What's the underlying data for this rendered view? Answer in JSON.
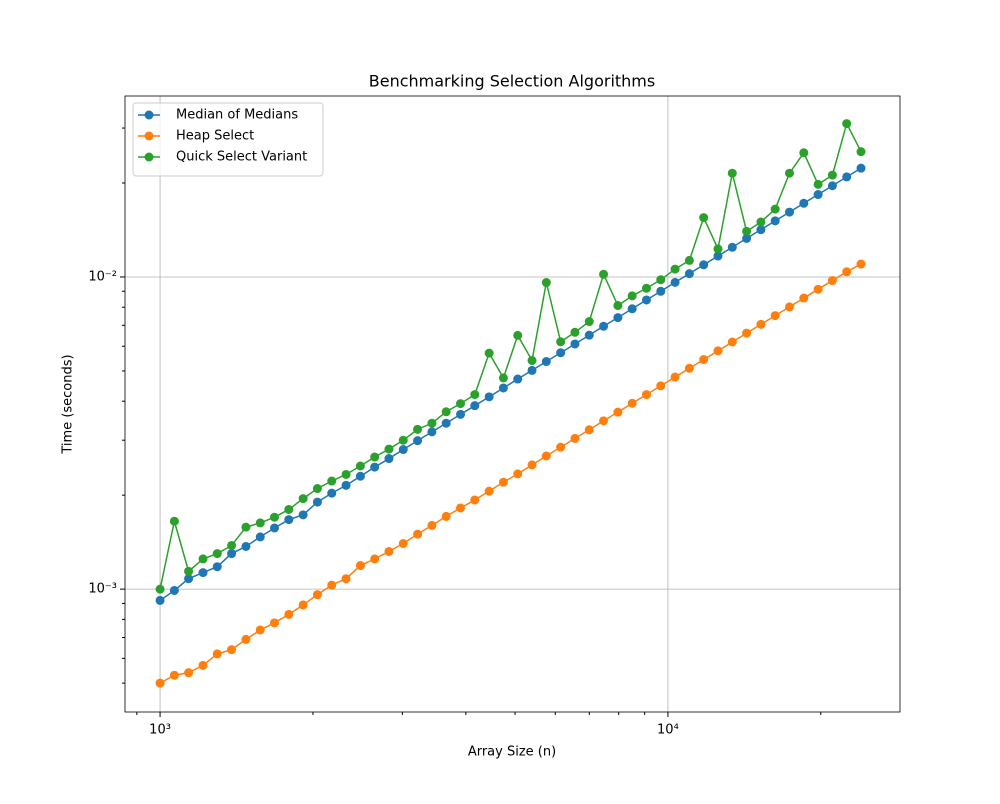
{
  "chart_data": {
    "type": "line",
    "title": "Benchmarking Selection Algorithms",
    "x_label": "Array Size (n)",
    "y_label": "Time (seconds)",
    "x": [
      1000,
      1067,
      1138,
      1215,
      1296,
      1383,
      1476,
      1575,
      1680,
      1793,
      1913,
      2041,
      2178,
      2324,
      2480,
      2646,
      2823,
      3012,
      3214,
      3430,
      3659,
      3905,
      4166,
      4446,
      4743,
      5061,
      5400,
      5762,
      6149,
      6561,
      7000,
      7469,
      7970,
      8504,
      9073,
      9681,
      10330,
      11022,
      11760,
      12548,
      13389,
      14286,
      15243,
      16264,
      17354,
      18516,
      19757,
      21080,
      22493,
      24000
    ],
    "series": [
      {
        "name": "Median of Medians",
        "color": "#1f77b4",
        "values": [
          0.00092,
          0.00099,
          0.00108,
          0.00113,
          0.00118,
          0.0013,
          0.00137,
          0.00147,
          0.00157,
          0.00167,
          0.00173,
          0.0019,
          0.00203,
          0.00215,
          0.0023,
          0.00246,
          0.00262,
          0.0028,
          0.00299,
          0.00319,
          0.0034,
          0.00363,
          0.00387,
          0.00413,
          0.00441,
          0.00471,
          0.00502,
          0.00536,
          0.00572,
          0.0061,
          0.00651,
          0.00695,
          0.00741,
          0.00791,
          0.00844,
          0.009,
          0.00961,
          0.01025,
          0.01094,
          0.01167,
          0.01245,
          0.01329,
          0.01418,
          0.01513,
          0.01614,
          0.01722,
          0.01837,
          0.0196,
          0.02092,
          0.02232
        ]
      },
      {
        "name": "Heap Select",
        "color": "#ff7f0e",
        "values": [
          0.0005,
          0.00053,
          0.00054,
          0.00057,
          0.00062,
          0.00064,
          0.00069,
          0.00074,
          0.00078,
          0.00083,
          0.00089,
          0.00096,
          0.00103,
          0.00108,
          0.00119,
          0.00125,
          0.00132,
          0.0014,
          0.0015,
          0.0016,
          0.00171,
          0.00182,
          0.00193,
          0.00206,
          0.0022,
          0.00234,
          0.0025,
          0.00267,
          0.00285,
          0.00304,
          0.00324,
          0.00346,
          0.00369,
          0.00394,
          0.0042,
          0.00448,
          0.00478,
          0.0051,
          0.00544,
          0.0058,
          0.00619,
          0.00661,
          0.00705,
          0.00752,
          0.00802,
          0.00856,
          0.00913,
          0.00974,
          0.01039,
          0.011
        ]
      },
      {
        "name": "Quick Select Variant",
        "color": "#2ca02c",
        "values": [
          0.001,
          0.00165,
          0.00114,
          0.00125,
          0.0013,
          0.00138,
          0.00158,
          0.00163,
          0.0017,
          0.0018,
          0.00195,
          0.0021,
          0.00222,
          0.00233,
          0.00248,
          0.00265,
          0.00281,
          0.003,
          0.00325,
          0.0034,
          0.0037,
          0.00393,
          0.0042,
          0.0057,
          0.00475,
          0.0065,
          0.0054,
          0.0096,
          0.0062,
          0.00665,
          0.0072,
          0.0102,
          0.0081,
          0.0087,
          0.0092,
          0.0098,
          0.0106,
          0.0113,
          0.0155,
          0.0123,
          0.0215,
          0.014,
          0.015,
          0.0165,
          0.0215,
          0.025,
          0.0198,
          0.0212,
          0.031,
          0.0252
        ]
      }
    ],
    "xscale": "log",
    "yscale": "log",
    "xlim": [
      853,
      28640
    ],
    "ylim": [
      0.000404,
      0.038
    ],
    "xticks": [
      {
        "value": 1000,
        "label": "10³"
      },
      {
        "value": 10000,
        "label": "10⁴"
      }
    ],
    "xminorticks": [
      900,
      2000,
      3000,
      4000,
      5000,
      6000,
      7000,
      8000,
      9000,
      20000
    ],
    "yticks": [
      {
        "value": 0.001,
        "label": "10⁻³"
      },
      {
        "value": 0.01,
        "label": "10⁻²"
      }
    ],
    "yminorticks": [
      0.0005,
      0.0006,
      0.0007,
      0.0008,
      0.0009,
      0.002,
      0.003,
      0.004,
      0.005,
      0.006,
      0.007,
      0.008,
      0.009,
      0.02,
      0.03
    ],
    "grid": true,
    "legend": "upper-left"
  }
}
